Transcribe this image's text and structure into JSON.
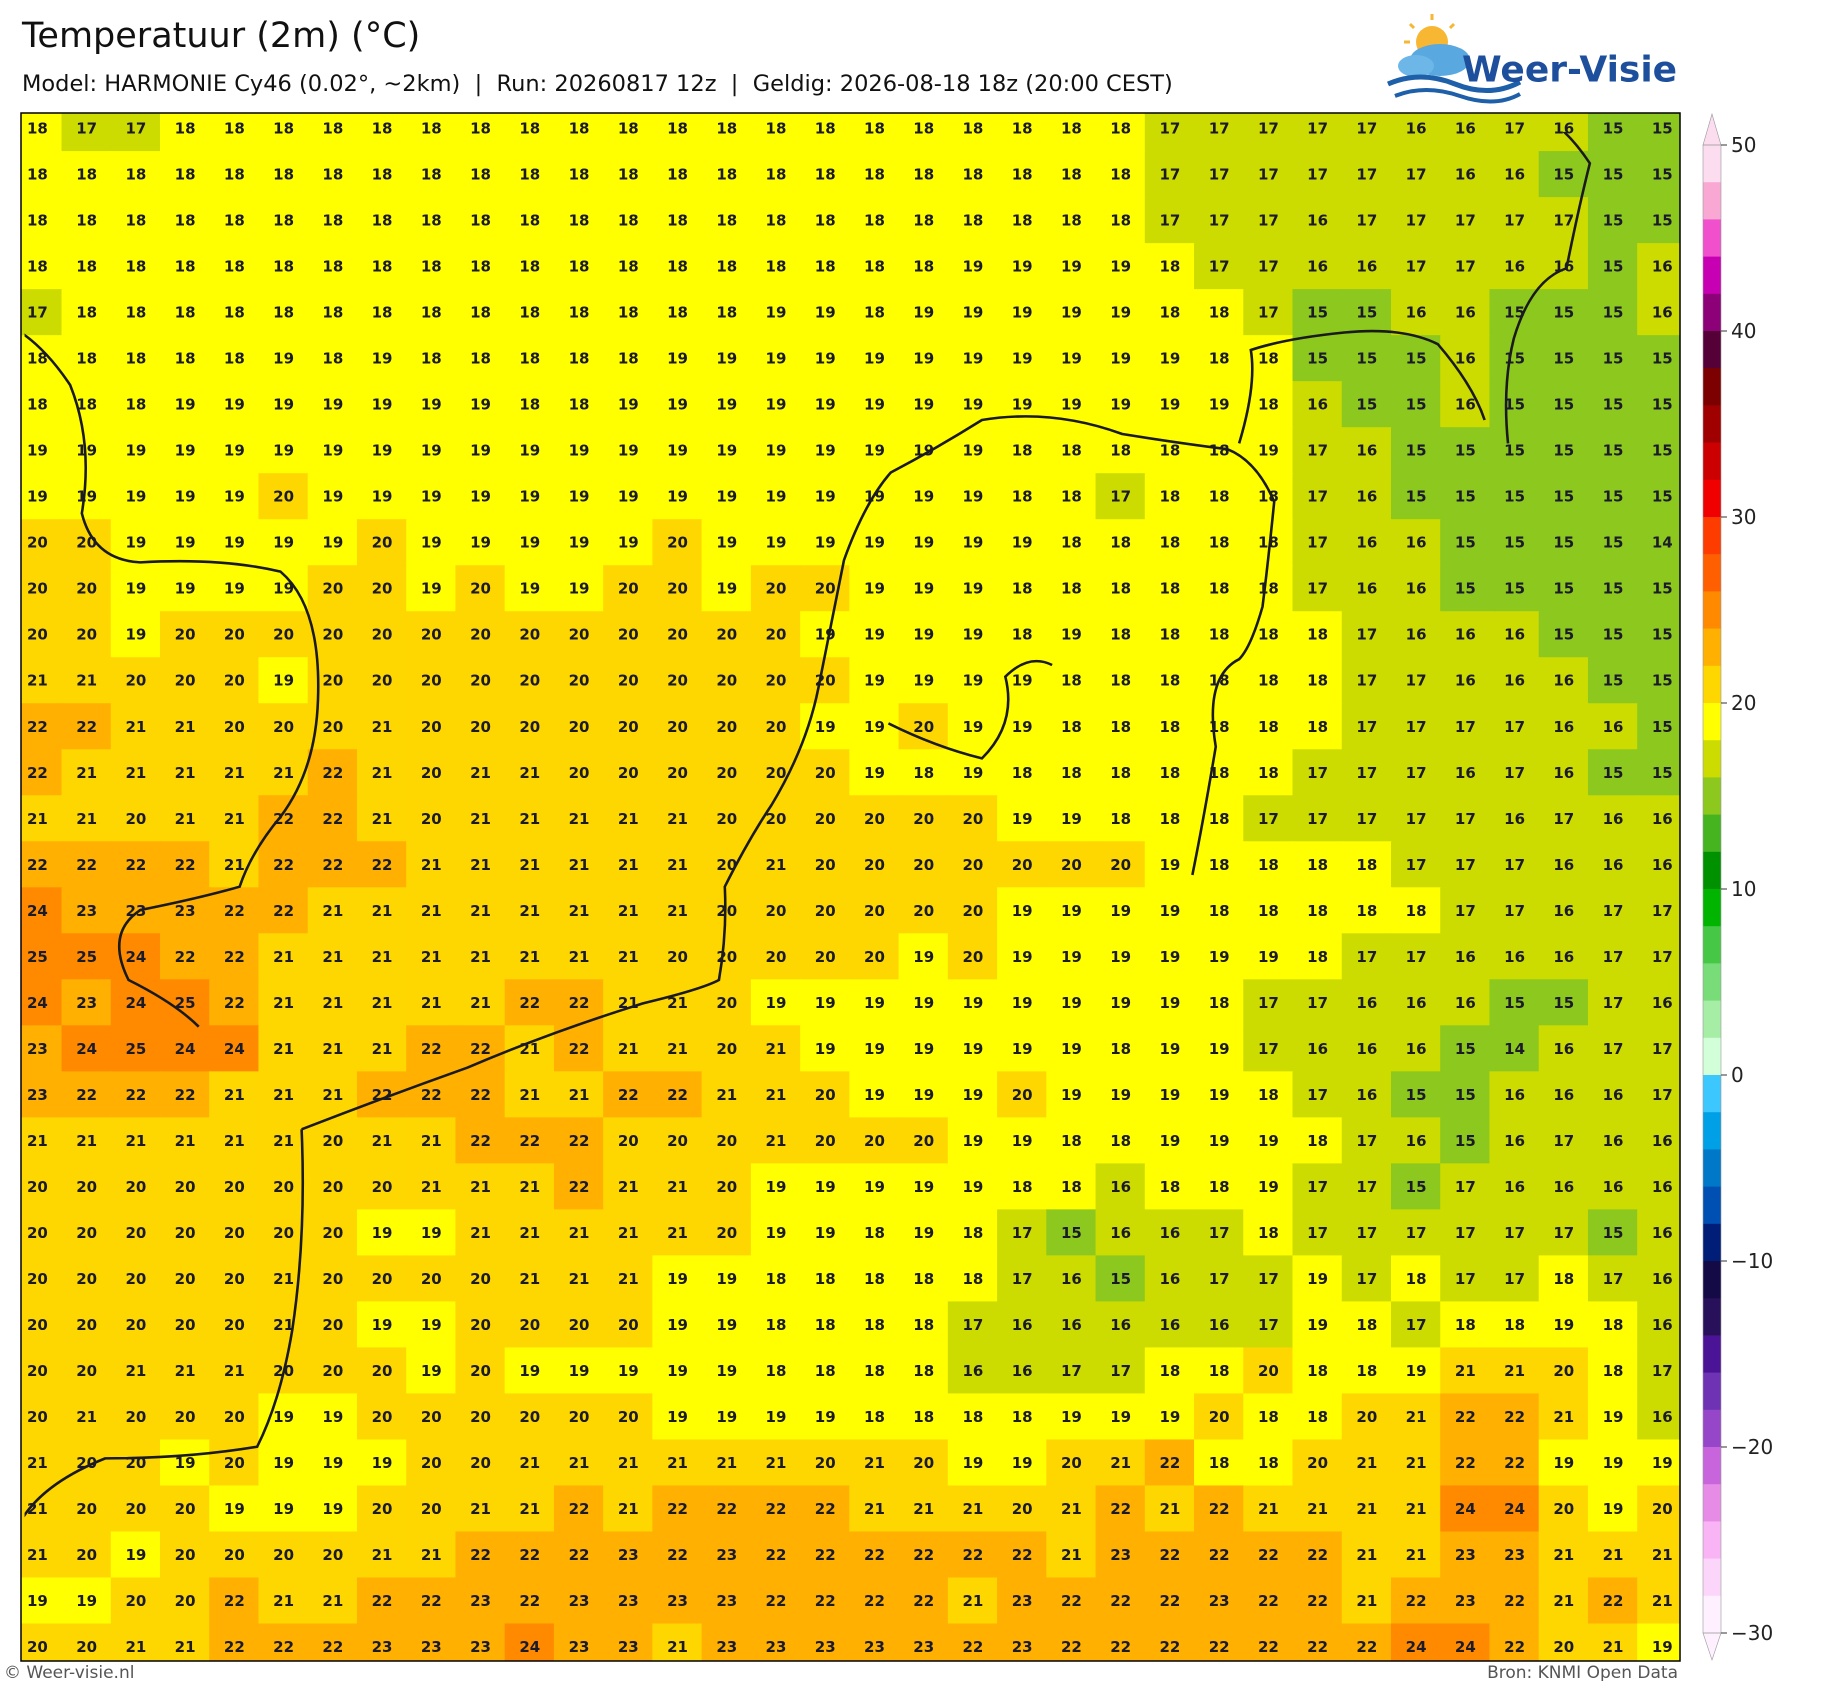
{
  "header": {
    "title": "Temperatuur (2m) (°C)",
    "subtitle": "Model: HARMONIE Cy46 (0.02°, ~2km)  |  Run: 20260817 12z  |  Geldig: 2026-08-18 18z (20:00 CEST)"
  },
  "logo": "Weer-Visie",
  "footer": {
    "left": "© Weer-visie.nl",
    "right": "Bron: KNMI Open Data"
  },
  "colorbar": {
    "lim": [
      -30,
      50
    ],
    "ticks": [
      50,
      40,
      30,
      20,
      10,
      0,
      {
        "value": -10,
        "label": "−10"
      },
      {
        "value": -20,
        "label": "−20"
      },
      {
        "value": -30,
        "label": "−30"
      }
    ],
    "colors": [
      "#fcdcef",
      "#f9a8d4",
      "#f050cc",
      "#c800b4",
      "#8c0078",
      "#550037",
      "#7d0000",
      "#a00000",
      "#cc0000",
      "#f00000",
      "#ff3c00",
      "#ff5f00",
      "#ff8a00",
      "#ffb000",
      "#ffd700",
      "#ffff00",
      "#cddc00",
      "#8cc81e",
      "#46b41e",
      "#009100",
      "#00b400",
      "#46c846",
      "#78dc78",
      "#a6eea6",
      "#d2ffd8",
      "#3cc8ff",
      "#00a0e6",
      "#0078c8",
      "#0050b4",
      "#001e78",
      "#140a46",
      "#28105a",
      "#4b1496",
      "#6e32b4",
      "#9646c8",
      "#c864dc",
      "#e68ce6",
      "#f8b4f4",
      "#fcd6fa",
      "#fef0fe"
    ]
  },
  "grid": {
    "rows": [
      [
        18,
        17,
        17,
        18,
        18,
        18,
        18,
        18,
        18,
        18,
        18,
        18,
        18,
        18,
        18,
        18,
        18,
        18,
        18,
        18,
        18,
        18,
        18,
        17,
        17,
        17,
        17,
        17,
        16,
        16,
        17,
        16,
        15,
        15
      ],
      [
        18,
        18,
        18,
        18,
        18,
        18,
        18,
        18,
        18,
        18,
        18,
        18,
        18,
        18,
        18,
        18,
        18,
        18,
        18,
        18,
        18,
        18,
        18,
        17,
        17,
        17,
        17,
        17,
        17,
        16,
        16,
        15,
        15,
        15
      ],
      [
        18,
        18,
        18,
        18,
        18,
        18,
        18,
        18,
        18,
        18,
        18,
        18,
        18,
        18,
        18,
        18,
        18,
        18,
        18,
        18,
        18,
        18,
        18,
        17,
        17,
        17,
        16,
        17,
        17,
        17,
        17,
        17,
        15,
        15
      ],
      [
        18,
        18,
        18,
        18,
        18,
        18,
        18,
        18,
        18,
        18,
        18,
        18,
        18,
        18,
        18,
        18,
        18,
        18,
        18,
        19,
        19,
        19,
        19,
        18,
        17,
        17,
        16,
        16,
        17,
        17,
        16,
        16,
        15,
        16
      ],
      [
        17,
        18,
        18,
        18,
        18,
        18,
        18,
        18,
        18,
        18,
        18,
        18,
        18,
        18,
        18,
        19,
        19,
        18,
        19,
        19,
        19,
        19,
        19,
        18,
        18,
        17,
        15,
        15,
        16,
        16,
        15,
        15,
        15,
        16
      ],
      [
        18,
        18,
        18,
        18,
        18,
        19,
        18,
        19,
        18,
        18,
        18,
        18,
        18,
        19,
        19,
        19,
        19,
        19,
        19,
        19,
        19,
        19,
        19,
        19,
        18,
        18,
        15,
        15,
        15,
        16,
        15,
        15,
        15,
        15
      ],
      [
        18,
        18,
        18,
        19,
        19,
        19,
        19,
        19,
        19,
        19,
        18,
        18,
        19,
        19,
        19,
        19,
        19,
        19,
        19,
        19,
        19,
        19,
        19,
        19,
        19,
        18,
        16,
        15,
        15,
        16,
        15,
        15,
        15,
        15
      ],
      [
        19,
        19,
        19,
        19,
        19,
        19,
        19,
        19,
        19,
        19,
        19,
        19,
        19,
        19,
        19,
        19,
        19,
        19,
        19,
        19,
        18,
        18,
        18,
        18,
        18,
        19,
        17,
        16,
        15,
        15,
        15,
        15,
        15,
        15
      ],
      [
        19,
        19,
        19,
        19,
        19,
        20,
        19,
        19,
        19,
        19,
        19,
        19,
        19,
        19,
        19,
        19,
        19,
        19,
        19,
        19,
        18,
        18,
        17,
        18,
        18,
        18,
        17,
        16,
        15,
        15,
        15,
        15,
        15,
        15
      ],
      [
        20,
        20,
        19,
        19,
        19,
        19,
        19,
        20,
        19,
        19,
        19,
        19,
        19,
        20,
        19,
        19,
        19,
        19,
        19,
        19,
        19,
        18,
        18,
        18,
        18,
        18,
        17,
        16,
        16,
        15,
        15,
        15,
        15,
        14
      ],
      [
        20,
        20,
        19,
        19,
        19,
        19,
        20,
        20,
        19,
        20,
        19,
        19,
        20,
        20,
        19,
        20,
        20,
        19,
        19,
        19,
        18,
        18,
        18,
        18,
        18,
        18,
        17,
        16,
        16,
        15,
        15,
        15,
        15,
        15
      ],
      [
        20,
        20,
        19,
        20,
        20,
        20,
        20,
        20,
        20,
        20,
        20,
        20,
        20,
        20,
        20,
        20,
        19,
        19,
        19,
        19,
        18,
        19,
        18,
        18,
        18,
        18,
        18,
        17,
        16,
        16,
        16,
        15,
        15,
        15
      ],
      [
        21,
        21,
        20,
        20,
        20,
        19,
        20,
        20,
        20,
        20,
        20,
        20,
        20,
        20,
        20,
        20,
        20,
        19,
        19,
        19,
        19,
        18,
        18,
        18,
        18,
        18,
        18,
        17,
        17,
        16,
        16,
        16,
        15,
        15
      ],
      [
        22,
        22,
        21,
        21,
        20,
        20,
        20,
        21,
        20,
        20,
        20,
        20,
        20,
        20,
        20,
        20,
        19,
        19,
        20,
        19,
        19,
        18,
        18,
        18,
        18,
        18,
        18,
        17,
        17,
        17,
        17,
        16,
        16,
        15
      ],
      [
        22,
        21,
        21,
        21,
        21,
        21,
        22,
        21,
        20,
        21,
        21,
        20,
        20,
        20,
        20,
        20,
        20,
        19,
        18,
        19,
        18,
        18,
        18,
        18,
        18,
        18,
        17,
        17,
        17,
        16,
        17,
        16,
        15,
        15
      ],
      [
        21,
        21,
        20,
        21,
        21,
        22,
        22,
        21,
        20,
        21,
        21,
        21,
        21,
        21,
        20,
        20,
        20,
        20,
        20,
        20,
        19,
        19,
        18,
        18,
        18,
        17,
        17,
        17,
        17,
        17,
        16,
        17,
        16,
        16
      ],
      [
        22,
        22,
        22,
        22,
        21,
        22,
        22,
        22,
        21,
        21,
        21,
        21,
        21,
        21,
        20,
        21,
        20,
        20,
        20,
        20,
        20,
        20,
        20,
        19,
        18,
        18,
        18,
        18,
        17,
        17,
        17,
        16,
        16,
        16
      ],
      [
        24,
        23,
        23,
        23,
        22,
        22,
        21,
        21,
        21,
        21,
        21,
        21,
        21,
        21,
        20,
        20,
        20,
        20,
        20,
        20,
        19,
        19,
        19,
        19,
        18,
        18,
        18,
        18,
        18,
        17,
        17,
        16,
        17,
        17
      ],
      [
        25,
        25,
        24,
        22,
        22,
        21,
        21,
        21,
        21,
        21,
        21,
        21,
        21,
        20,
        20,
        20,
        20,
        20,
        19,
        20,
        19,
        19,
        19,
        19,
        19,
        19,
        18,
        17,
        17,
        16,
        16,
        16,
        17,
        17
      ],
      [
        24,
        23,
        24,
        25,
        22,
        21,
        21,
        21,
        21,
        21,
        22,
        22,
        21,
        21,
        20,
        19,
        19,
        19,
        19,
        19,
        19,
        19,
        19,
        19,
        18,
        17,
        17,
        16,
        16,
        16,
        15,
        15,
        17,
        16
      ],
      [
        23,
        24,
        25,
        24,
        24,
        21,
        21,
        21,
        22,
        22,
        21,
        22,
        21,
        21,
        20,
        21,
        19,
        19,
        19,
        19,
        19,
        19,
        18,
        19,
        19,
        17,
        16,
        16,
        16,
        15,
        14,
        16,
        17,
        17
      ],
      [
        23,
        22,
        22,
        22,
        21,
        21,
        21,
        22,
        22,
        22,
        21,
        21,
        22,
        22,
        21,
        21,
        20,
        19,
        19,
        19,
        20,
        19,
        19,
        19,
        19,
        18,
        17,
        16,
        15,
        15,
        16,
        16,
        16,
        17
      ],
      [
        21,
        21,
        21,
        21,
        21,
        21,
        20,
        21,
        21,
        22,
        22,
        22,
        20,
        20,
        20,
        21,
        20,
        20,
        20,
        19,
        19,
        18,
        18,
        19,
        19,
        19,
        18,
        17,
        16,
        15,
        16,
        17,
        16,
        16
      ],
      [
        20,
        20,
        20,
        20,
        20,
        20,
        20,
        20,
        21,
        21,
        21,
        22,
        21,
        21,
        20,
        19,
        19,
        19,
        19,
        19,
        18,
        18,
        16,
        18,
        18,
        19,
        17,
        17,
        15,
        17,
        16,
        16,
        16,
        16
      ],
      [
        20,
        20,
        20,
        20,
        20,
        20,
        20,
        19,
        19,
        21,
        21,
        21,
        21,
        21,
        20,
        19,
        19,
        18,
        19,
        18,
        17,
        15,
        16,
        16,
        17,
        18,
        17,
        17,
        17,
        17,
        17,
        17,
        15,
        16
      ],
      [
        20,
        20,
        20,
        20,
        20,
        21,
        20,
        20,
        20,
        20,
        21,
        21,
        21,
        19,
        19,
        18,
        18,
        18,
        18,
        18,
        17,
        16,
        15,
        16,
        17,
        17,
        19,
        17,
        18,
        17,
        17,
        18,
        17,
        16
      ],
      [
        20,
        20,
        20,
        20,
        20,
        21,
        20,
        19,
        19,
        20,
        20,
        20,
        20,
        19,
        19,
        18,
        18,
        18,
        18,
        17,
        16,
        16,
        16,
        16,
        16,
        17,
        19,
        18,
        17,
        18,
        18,
        19,
        18,
        16
      ],
      [
        20,
        20,
        21,
        21,
        21,
        20,
        20,
        20,
        19,
        20,
        19,
        19,
        19,
        19,
        19,
        18,
        18,
        18,
        18,
        16,
        16,
        17,
        17,
        18,
        18,
        20,
        18,
        18,
        19,
        21,
        21,
        20,
        18,
        17
      ],
      [
        20,
        21,
        20,
        20,
        20,
        19,
        19,
        20,
        20,
        20,
        20,
        20,
        20,
        19,
        19,
        19,
        19,
        18,
        18,
        18,
        18,
        19,
        19,
        19,
        20,
        18,
        18,
        20,
        21,
        22,
        22,
        21,
        19,
        16
      ],
      [
        21,
        20,
        20,
        19,
        20,
        19,
        19,
        19,
        20,
        20,
        21,
        21,
        21,
        21,
        21,
        21,
        20,
        21,
        20,
        19,
        19,
        20,
        21,
        22,
        18,
        18,
        20,
        21,
        21,
        22,
        22,
        19,
        19,
        19
      ],
      [
        21,
        20,
        20,
        20,
        19,
        19,
        19,
        20,
        20,
        21,
        21,
        22,
        21,
        22,
        22,
        22,
        22,
        21,
        21,
        21,
        20,
        21,
        22,
        21,
        22,
        21,
        21,
        21,
        21,
        24,
        24,
        20,
        19,
        20
      ],
      [
        21,
        20,
        19,
        20,
        20,
        20,
        20,
        21,
        21,
        22,
        22,
        22,
        23,
        22,
        23,
        22,
        22,
        22,
        22,
        22,
        22,
        21,
        23,
        22,
        22,
        22,
        22,
        21,
        21,
        23,
        23,
        21,
        21,
        21
      ],
      [
        19,
        19,
        20,
        20,
        22,
        21,
        21,
        22,
        22,
        23,
        22,
        23,
        23,
        23,
        23,
        22,
        22,
        22,
        22,
        21,
        23,
        22,
        22,
        22,
        23,
        22,
        22,
        21,
        22,
        23,
        22,
        21,
        22,
        21
      ],
      [
        20,
        20,
        21,
        21,
        22,
        22,
        22,
        23,
        23,
        23,
        24,
        23,
        23,
        21,
        23,
        23,
        23,
        23,
        23,
        22,
        23,
        22,
        22,
        22,
        22,
        22,
        22,
        22,
        24,
        24,
        22,
        20,
        21,
        19
      ]
    ]
  }
}
